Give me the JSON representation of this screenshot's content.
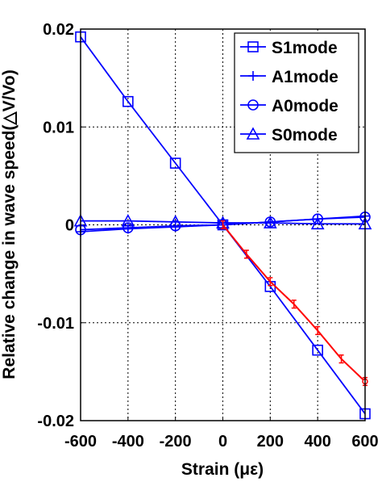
{
  "chart_data": {
    "type": "line",
    "xlabel": "Strain (με)",
    "ylabel": "Relative change in wave speed(△V/Vo)",
    "xlim": [
      -600,
      600
    ],
    "ylim": [
      -0.02,
      0.02
    ],
    "x_ticks": [
      "-600",
      "-400",
      "-200",
      "0",
      "200",
      "400",
      "600"
    ],
    "y_ticks": [
      "0.02",
      "0.01",
      "0",
      "-0.01",
      "-0.02"
    ],
    "grid": true,
    "legend_position": "top-right",
    "x": [
      -600,
      -400,
      -200,
      0,
      200,
      400,
      600
    ],
    "series": [
      {
        "name": "S1mode",
        "marker": "square",
        "color": "#0000ff",
        "values": [
          0.0192,
          0.0126,
          0.0063,
          0.0,
          -0.0063,
          -0.0128,
          -0.0193
        ]
      },
      {
        "name": "A1mode",
        "marker": "plus",
        "color": "#0000ff",
        "values": [
          -0.0007,
          -0.0004,
          -0.0002,
          0.0,
          0.0003,
          0.0006,
          0.0009
        ]
      },
      {
        "name": "A0mode",
        "marker": "circle",
        "color": "#0000ff",
        "values": [
          -0.0005,
          -0.0003,
          -0.0001,
          0.0,
          0.0003,
          0.0006,
          0.0008
        ]
      },
      {
        "name": "S0mode",
        "marker": "triangle",
        "color": "#0000ff",
        "values": [
          0.0004,
          0.0004,
          0.0003,
          0.0002,
          0.0002,
          0.0001,
          0.0001
        ]
      }
    ],
    "red_series": {
      "color": "#ff0000",
      "x": [
        0,
        100,
        200,
        300,
        400,
        500,
        600
      ],
      "values": [
        0.0,
        -0.003,
        -0.0058,
        -0.0081,
        -0.0108,
        -0.0137,
        -0.016
      ],
      "error": [
        0.0004,
        0.0004,
        0.0004,
        0.0004,
        0.0004,
        0.0004,
        0.0004
      ]
    }
  }
}
